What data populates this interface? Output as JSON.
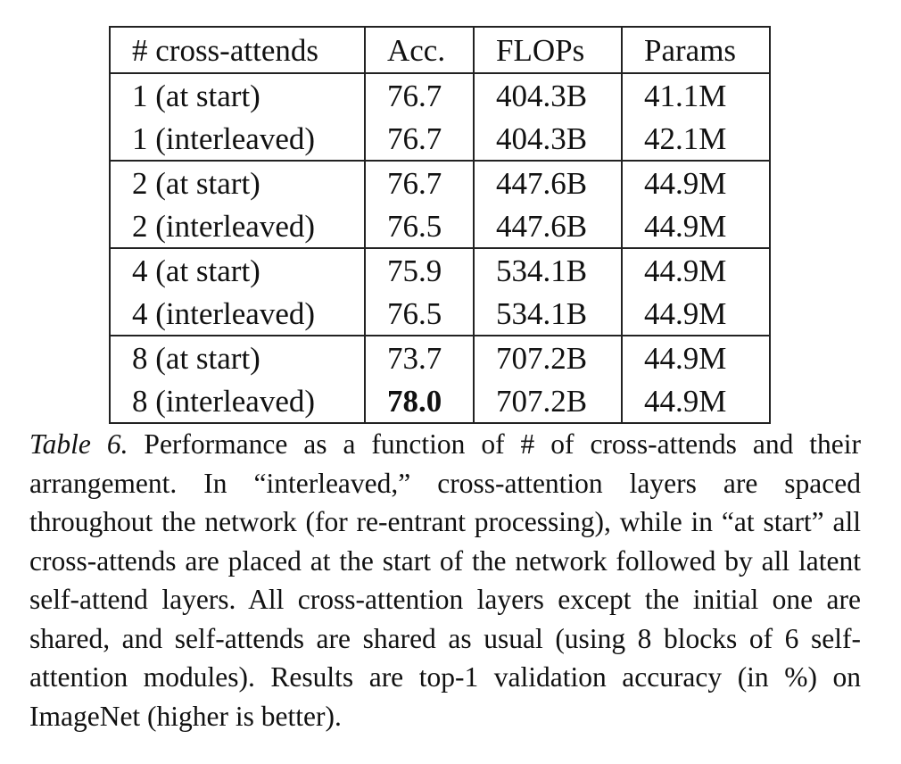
{
  "table": {
    "headers": [
      "# cross-attends",
      "Acc.",
      "FLOPs",
      "Params"
    ],
    "rows": [
      {
        "setting": "1 (at start)",
        "acc": "76.7",
        "flops": "404.3B",
        "params": "41.1M"
      },
      {
        "setting": "1 (interleaved)",
        "acc": "76.7",
        "flops": "404.3B",
        "params": "42.1M"
      },
      {
        "setting": "2 (at start)",
        "acc": "76.7",
        "flops": "447.6B",
        "params": "44.9M"
      },
      {
        "setting": "2 (interleaved)",
        "acc": "76.5",
        "flops": "447.6B",
        "params": "44.9M"
      },
      {
        "setting": "4 (at start)",
        "acc": "75.9",
        "flops": "534.1B",
        "params": "44.9M"
      },
      {
        "setting": "4 (interleaved)",
        "acc": "76.5",
        "flops": "534.1B",
        "params": "44.9M"
      },
      {
        "setting": "8 (at start)",
        "acc": "73.7",
        "flops": "707.2B",
        "params": "44.9M"
      },
      {
        "setting": "8 (interleaved)",
        "acc": "78.0",
        "flops": "707.2B",
        "params": "44.9M"
      }
    ],
    "best_acc": "78.0"
  },
  "caption": {
    "label": "Table 6.",
    "text": "Performance as a function of # of cross-attends and their arrangement. In “interleaved,” cross-attention layers are spaced throughout the network (for re-entrant processing), while in “at start” all cross-attends are placed at the start of the network followed by all latent self-attend layers.  All cross-attention layers except the initial one are shared, and self-attends are shared as usual (using 8 blocks of 6 self-attention modules).  Results are top-1 validation accuracy (in %) on ImageNet (higher is better)."
  }
}
